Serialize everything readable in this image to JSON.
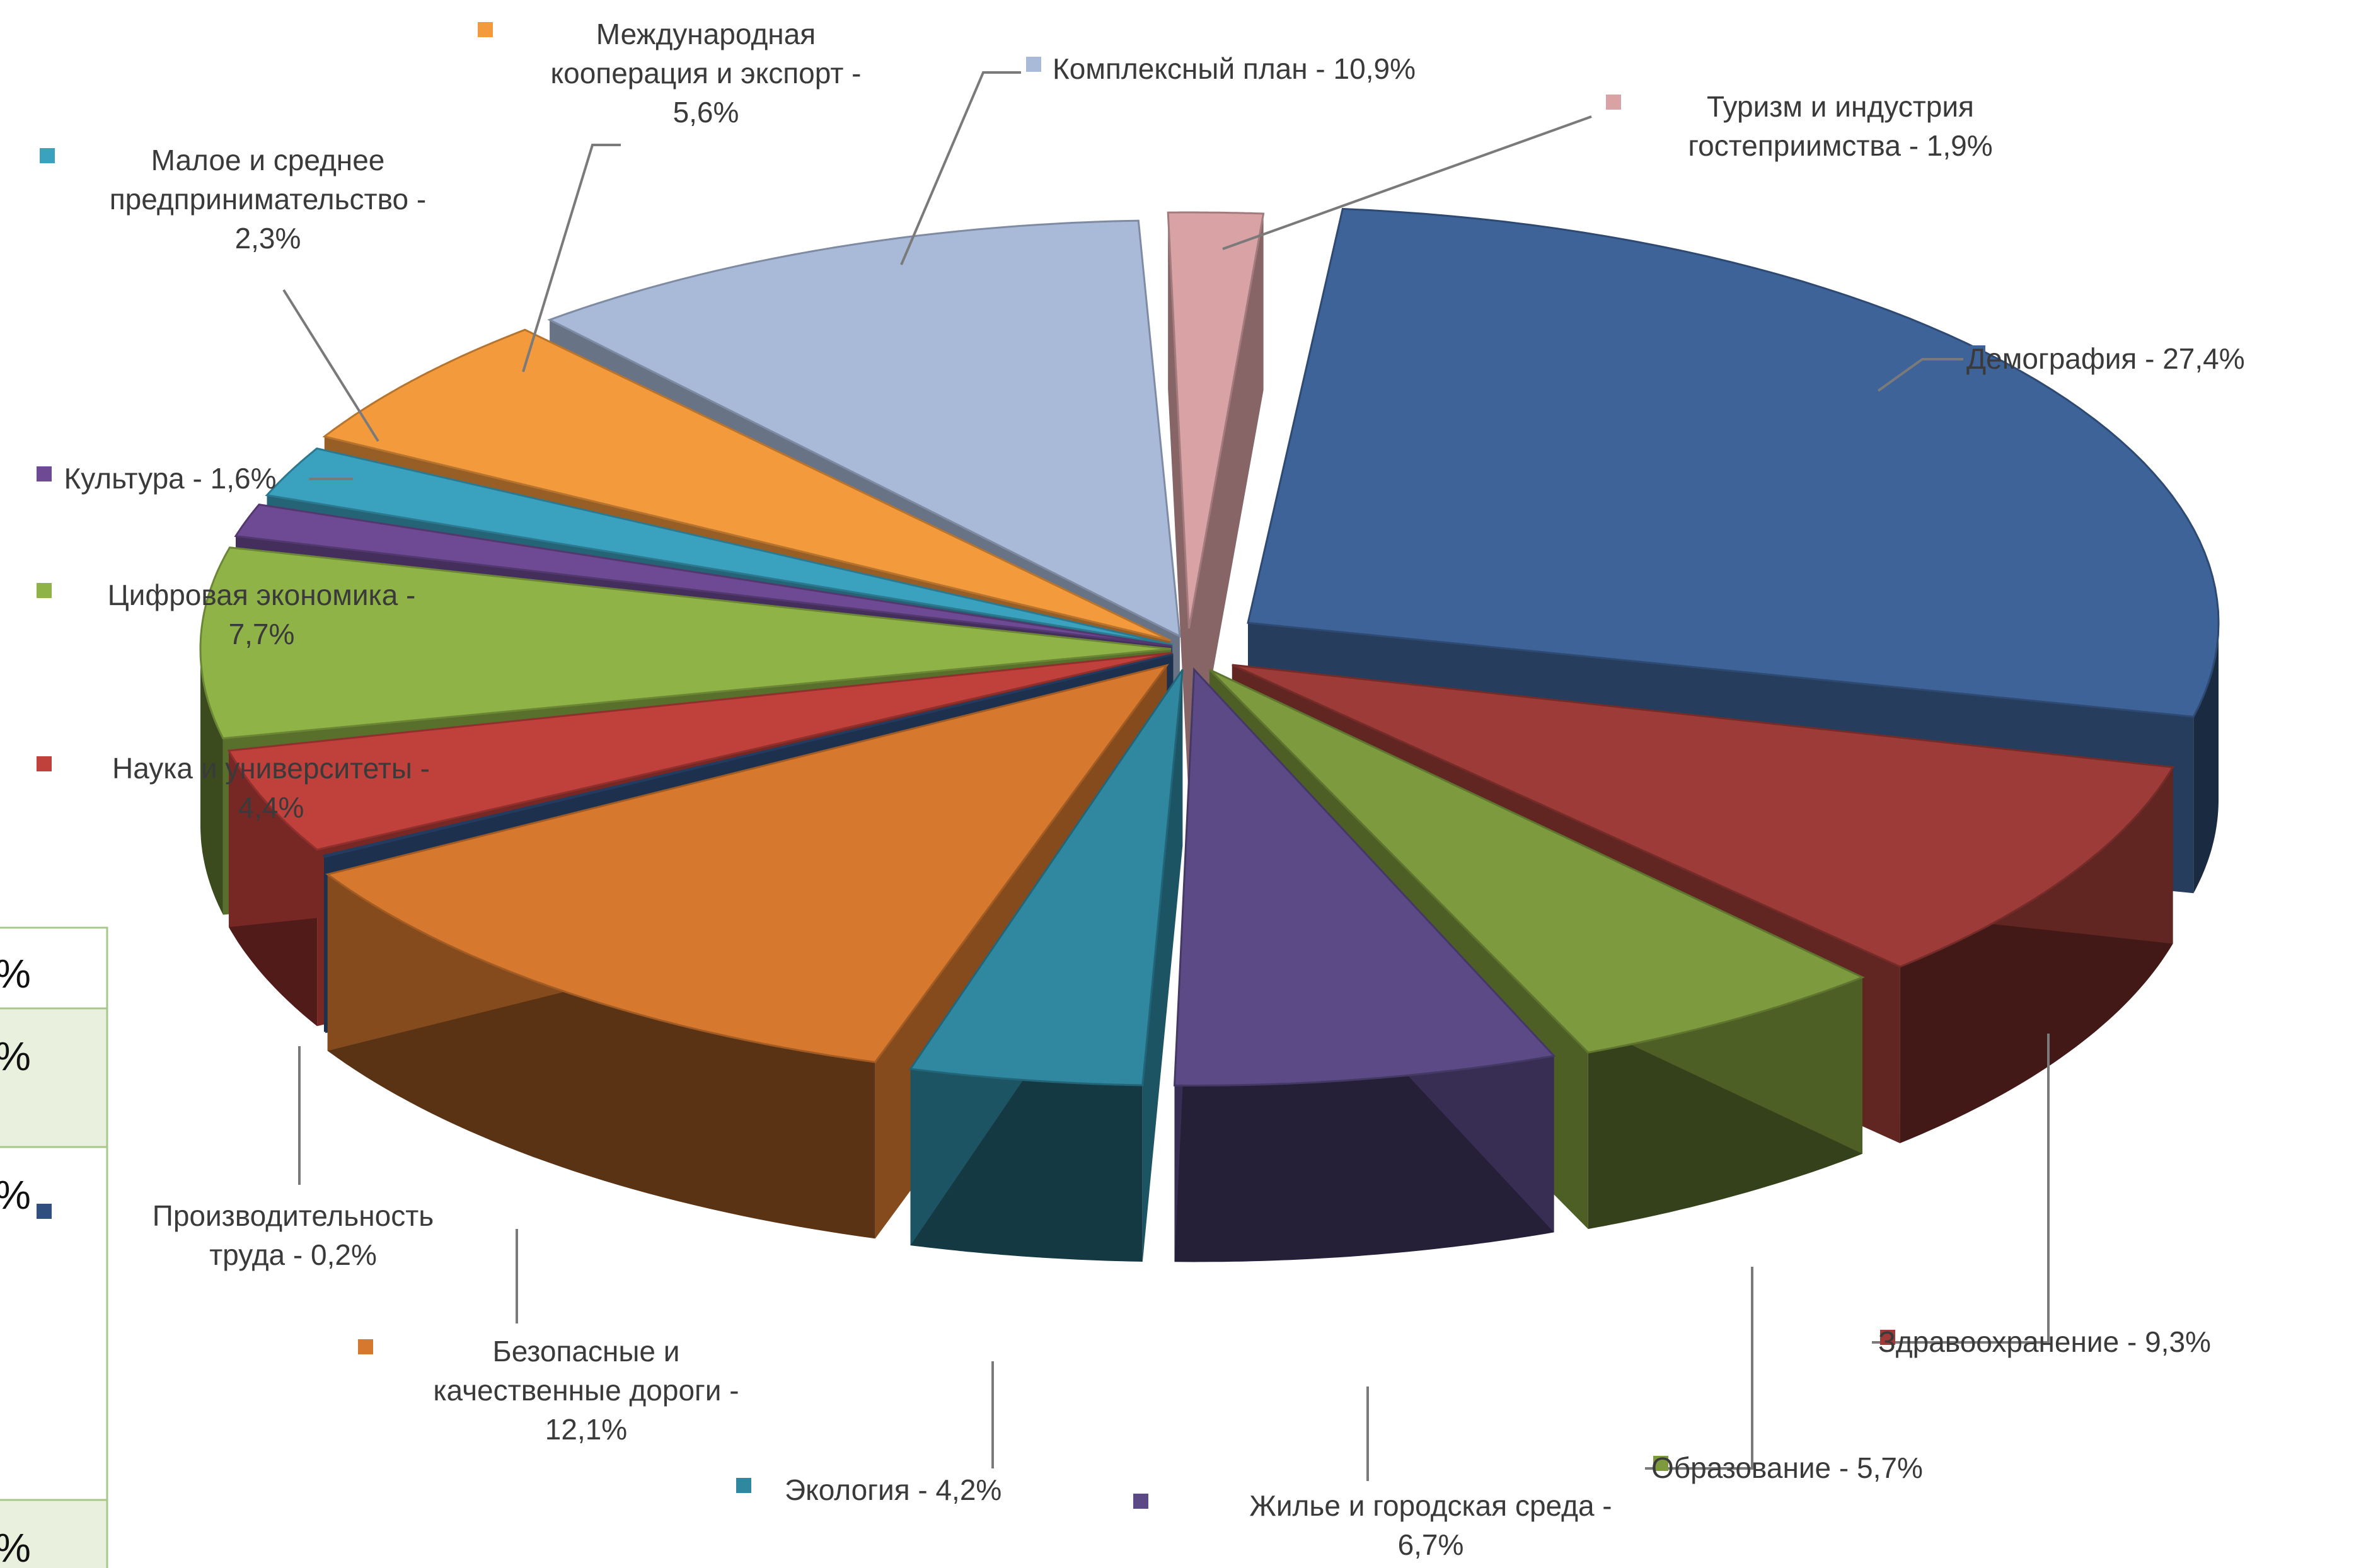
{
  "chart_data": {
    "type": "pie",
    "title": "",
    "slices": [
      {
        "name": "Демография",
        "value": 27.4,
        "label": "Демография  - 27,4%",
        "color": "#3d6398"
      },
      {
        "name": "Здравоохранение",
        "value": 9.3,
        "label": "Здравоохранение  - 9,3%",
        "color": "#9c3b37"
      },
      {
        "name": "Образование",
        "value": 5.7,
        "label": "Образование  - 5,7%",
        "color": "#7d9a3e"
      },
      {
        "name": "Жилье и городская среда",
        "value": 6.7,
        "label": "Жилье и городская среда - 6,7%",
        "color": "#5b4a86"
      },
      {
        "name": "Экология",
        "value": 4.2,
        "label": "Экология - 4,2%",
        "color": "#2f87a0"
      },
      {
        "name": "Безопасные и качественные дороги",
        "value": 12.1,
        "label": "Безопасные и качественные дороги - 12,1%",
        "color": "#d6792f"
      },
      {
        "name": "Производительность труда",
        "value": 0.2,
        "label": "Производительность труда - 0,2%",
        "color": "#2f4f7f"
      },
      {
        "name": "Наука и университеты",
        "value": 4.4,
        "label": "Наука и университеты - 4,4%",
        "color": "#c0403c"
      },
      {
        "name": "Цифровая экономика",
        "value": 7.7,
        "label": "Цифровая экономика - 7,7%",
        "color": "#8fb347"
      },
      {
        "name": "Культура",
        "value": 1.6,
        "label": "Культура - 1,6%",
        "color": "#6d4a93"
      },
      {
        "name": "Малое и среднее предпринимательство",
        "value": 2.3,
        "label": "Малое и среднее предпринимательство - 2,3%",
        "color": "#3aa1bf"
      },
      {
        "name": "Международная кооперация и экспорт",
        "value": 5.6,
        "label": "Международная кооперация и экспорт - 5,6%",
        "color": "#f39a3d"
      },
      {
        "name": "Комплексный план",
        "value": 10.9,
        "label": "Комплексный план - 10,9%",
        "color": "#a9b9d8"
      },
      {
        "name": "Туризм и индустрия гостеприимства",
        "value": 1.9,
        "label": "Туризм и индустрия гостеприимства - 1,9%",
        "color": "#d9a3a6"
      }
    ],
    "legend": "none",
    "grid": false
  },
  "overlay_table": {
    "cells": [
      "%",
      "%",
      "%",
      "%"
    ]
  }
}
